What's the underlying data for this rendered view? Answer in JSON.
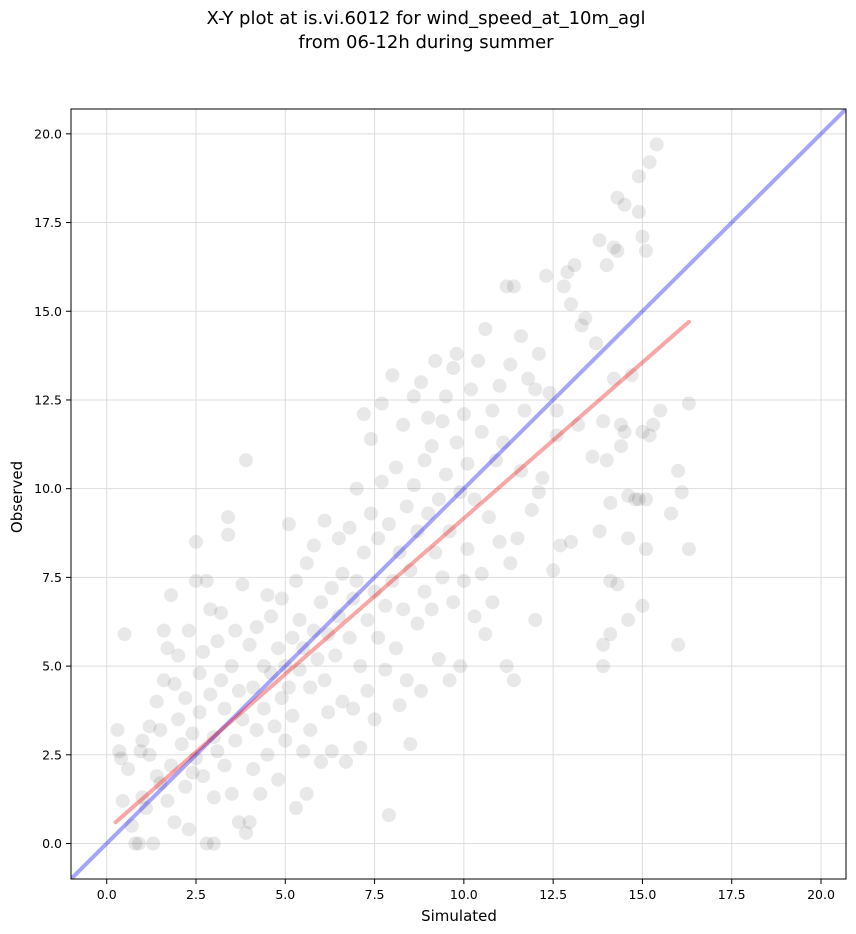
{
  "chart_data": {
    "type": "scatter",
    "title": "X-Y plot at is.vi.6012 for wind_speed_at_10m_agl",
    "subtitle": "from 06-12h during summer",
    "xlabel": "Simulated",
    "ylabel": "Observed",
    "xlim": [
      -1.0,
      20.7
    ],
    "ylim": [
      -1.0,
      20.7
    ],
    "xticks": [
      0.0,
      2.5,
      5.0,
      7.5,
      10.0,
      12.5,
      15.0,
      17.5,
      20.0
    ],
    "yticks": [
      0.0,
      2.5,
      5.0,
      7.5,
      10.0,
      12.5,
      15.0,
      17.5,
      20.0
    ],
    "xtick_labels": [
      "0.0",
      "2.5",
      "5.0",
      "7.5",
      "10.0",
      "12.5",
      "15.0",
      "17.5",
      "20.0"
    ],
    "ytick_labels": [
      "0.0",
      "2.5",
      "5.0",
      "7.5",
      "10.0",
      "12.5",
      "15.0",
      "17.5",
      "20.0"
    ],
    "grid": true,
    "marker_color": "#000000",
    "identity_line_color": "#0000ee",
    "fit_line_color": "#ee0000",
    "identity_line": {
      "x": [
        -1.0,
        20.7
      ],
      "y": [
        -1.0,
        20.7
      ]
    },
    "fit_line": {
      "x": [
        0.25,
        16.3
      ],
      "y": [
        0.6,
        14.7
      ]
    },
    "series": [
      {
        "values": [
          [
            0.3,
            3.2
          ],
          [
            0.35,
            2.6
          ],
          [
            0.4,
            2.4
          ],
          [
            0.45,
            1.2
          ],
          [
            0.5,
            5.9
          ],
          [
            0.6,
            2.1
          ],
          [
            0.7,
            0.5
          ],
          [
            0.8,
            0.0
          ],
          [
            0.9,
            0.0
          ],
          [
            0.95,
            2.6
          ],
          [
            1.0,
            1.3
          ],
          [
            1.0,
            2.9
          ],
          [
            1.1,
            1.0
          ],
          [
            1.2,
            3.3
          ],
          [
            1.2,
            2.5
          ],
          [
            1.3,
            0.0
          ],
          [
            1.4,
            4.0
          ],
          [
            1.4,
            1.9
          ],
          [
            1.5,
            1.7
          ],
          [
            1.5,
            3.2
          ],
          [
            1.6,
            6.0
          ],
          [
            1.6,
            4.6
          ],
          [
            1.7,
            5.5
          ],
          [
            1.7,
            1.2
          ],
          [
            1.8,
            7.0
          ],
          [
            1.8,
            2.2
          ],
          [
            1.9,
            4.5
          ],
          [
            1.9,
            0.6
          ],
          [
            2.0,
            3.5
          ],
          [
            2.0,
            5.3
          ],
          [
            2.1,
            2.8
          ],
          [
            2.2,
            1.6
          ],
          [
            2.2,
            4.1
          ],
          [
            2.3,
            6.0
          ],
          [
            2.3,
            0.4
          ],
          [
            2.4,
            3.1
          ],
          [
            2.4,
            2.0
          ],
          [
            2.5,
            8.5
          ],
          [
            2.5,
            2.4
          ],
          [
            2.5,
            7.4
          ],
          [
            2.6,
            4.8
          ],
          [
            2.6,
            3.7
          ],
          [
            2.7,
            5.4
          ],
          [
            2.7,
            1.9
          ],
          [
            2.8,
            0.0
          ],
          [
            2.8,
            7.4
          ],
          [
            2.9,
            4.2
          ],
          [
            2.9,
            6.6
          ],
          [
            3.0,
            3.0
          ],
          [
            3.0,
            1.3
          ],
          [
            3.0,
            0.0
          ],
          [
            3.1,
            5.7
          ],
          [
            3.1,
            2.6
          ],
          [
            3.2,
            4.6
          ],
          [
            3.2,
            6.5
          ],
          [
            3.3,
            2.2
          ],
          [
            3.3,
            3.8
          ],
          [
            3.4,
            9.2
          ],
          [
            3.4,
            8.7
          ],
          [
            3.5,
            5.0
          ],
          [
            3.5,
            1.4
          ],
          [
            3.6,
            6.0
          ],
          [
            3.6,
            2.9
          ],
          [
            3.7,
            0.6
          ],
          [
            3.7,
            4.3
          ],
          [
            3.8,
            7.3
          ],
          [
            3.8,
            3.5
          ],
          [
            3.9,
            0.3
          ],
          [
            3.9,
            10.8
          ],
          [
            4.0,
            5.6
          ],
          [
            4.0,
            0.6
          ],
          [
            4.1,
            2.1
          ],
          [
            4.1,
            4.4
          ],
          [
            4.2,
            6.1
          ],
          [
            4.2,
            3.2
          ],
          [
            4.3,
            1.4
          ],
          [
            4.4,
            5.0
          ],
          [
            4.4,
            3.8
          ],
          [
            4.5,
            7.0
          ],
          [
            4.5,
            2.5
          ],
          [
            4.6,
            6.4
          ],
          [
            4.6,
            4.8
          ],
          [
            4.7,
            3.3
          ],
          [
            4.8,
            5.5
          ],
          [
            4.8,
            1.8
          ],
          [
            4.9,
            4.1
          ],
          [
            4.9,
            6.9
          ],
          [
            5.0,
            5.0
          ],
          [
            5.0,
            2.9
          ],
          [
            5.1,
            9.0
          ],
          [
            5.1,
            4.4
          ],
          [
            5.2,
            5.8
          ],
          [
            5.2,
            3.6
          ],
          [
            5.3,
            7.4
          ],
          [
            5.3,
            1.0
          ],
          [
            5.4,
            4.9
          ],
          [
            5.4,
            6.3
          ],
          [
            5.5,
            2.6
          ],
          [
            5.5,
            5.5
          ],
          [
            5.6,
            1.4
          ],
          [
            5.6,
            7.9
          ],
          [
            5.7,
            4.4
          ],
          [
            5.7,
            3.2
          ],
          [
            5.8,
            6.0
          ],
          [
            5.8,
            8.4
          ],
          [
            5.9,
            5.2
          ],
          [
            6.0,
            2.3
          ],
          [
            6.0,
            6.8
          ],
          [
            6.1,
            4.6
          ],
          [
            6.1,
            9.1
          ],
          [
            6.2,
            5.9
          ],
          [
            6.2,
            3.7
          ],
          [
            6.3,
            7.2
          ],
          [
            6.3,
            2.6
          ],
          [
            6.4,
            5.3
          ],
          [
            6.5,
            8.6
          ],
          [
            6.5,
            6.4
          ],
          [
            6.6,
            4.0
          ],
          [
            6.6,
            7.6
          ],
          [
            6.7,
            2.3
          ],
          [
            6.8,
            5.8
          ],
          [
            6.8,
            8.9
          ],
          [
            6.9,
            6.9
          ],
          [
            6.9,
            3.8
          ],
          [
            7.0,
            7.4
          ],
          [
            7.0,
            10.0
          ],
          [
            7.1,
            5.0
          ],
          [
            7.1,
            2.7
          ],
          [
            7.2,
            12.1
          ],
          [
            7.2,
            8.2
          ],
          [
            7.3,
            6.3
          ],
          [
            7.3,
            4.3
          ],
          [
            7.4,
            9.3
          ],
          [
            7.4,
            11.4
          ],
          [
            7.5,
            7.1
          ],
          [
            7.5,
            3.5
          ],
          [
            7.6,
            8.6
          ],
          [
            7.6,
            5.8
          ],
          [
            7.7,
            10.2
          ],
          [
            7.7,
            12.4
          ],
          [
            7.8,
            6.7
          ],
          [
            7.8,
            4.9
          ],
          [
            7.9,
            9.0
          ],
          [
            7.9,
            0.8
          ],
          [
            8.0,
            7.4
          ],
          [
            8.0,
            13.2
          ],
          [
            8.1,
            5.5
          ],
          [
            8.1,
            10.6
          ],
          [
            8.2,
            8.2
          ],
          [
            8.2,
            3.9
          ],
          [
            8.3,
            11.8
          ],
          [
            8.3,
            6.6
          ],
          [
            8.4,
            9.5
          ],
          [
            8.4,
            4.6
          ],
          [
            8.5,
            7.7
          ],
          [
            8.5,
            2.8
          ],
          [
            8.6,
            12.6
          ],
          [
            8.6,
            10.1
          ],
          [
            8.7,
            8.8
          ],
          [
            8.7,
            6.2
          ],
          [
            8.8,
            13.0
          ],
          [
            8.8,
            4.3
          ],
          [
            8.9,
            10.8
          ],
          [
            8.9,
            7.1
          ],
          [
            9.0,
            9.3
          ],
          [
            9.0,
            12.0
          ],
          [
            9.1,
            6.6
          ],
          [
            9.1,
            11.2
          ],
          [
            9.2,
            8.2
          ],
          [
            9.2,
            13.6
          ],
          [
            9.3,
            9.7
          ],
          [
            9.3,
            5.2
          ],
          [
            9.4,
            11.9
          ],
          [
            9.4,
            7.5
          ],
          [
            9.5,
            10.4
          ],
          [
            9.5,
            12.6
          ],
          [
            9.6,
            8.8
          ],
          [
            9.6,
            4.6
          ],
          [
            9.7,
            13.4
          ],
          [
            9.7,
            6.8
          ],
          [
            9.8,
            11.3
          ],
          [
            9.8,
            13.8
          ],
          [
            9.9,
            9.9
          ],
          [
            9.9,
            5.0
          ],
          [
            10.0,
            12.1
          ],
          [
            10.0,
            7.4
          ],
          [
            10.1,
            10.7
          ],
          [
            10.1,
            8.3
          ],
          [
            10.2,
            12.8
          ],
          [
            10.3,
            6.4
          ],
          [
            10.3,
            9.7
          ],
          [
            10.4,
            13.6
          ],
          [
            10.5,
            11.6
          ],
          [
            10.5,
            7.6
          ],
          [
            10.6,
            14.5
          ],
          [
            10.6,
            5.9
          ],
          [
            10.7,
            9.2
          ],
          [
            10.8,
            12.2
          ],
          [
            10.8,
            6.8
          ],
          [
            10.9,
            10.8
          ],
          [
            11.0,
            12.9
          ],
          [
            11.0,
            8.5
          ],
          [
            11.1,
            11.3
          ],
          [
            11.2,
            15.7
          ],
          [
            11.2,
            5.0
          ],
          [
            11.3,
            13.5
          ],
          [
            11.3,
            7.9
          ],
          [
            11.4,
            15.7
          ],
          [
            11.4,
            4.6
          ],
          [
            11.5,
            8.6
          ],
          [
            11.6,
            14.3
          ],
          [
            11.6,
            10.5
          ],
          [
            11.7,
            12.2
          ],
          [
            11.8,
            13.1
          ],
          [
            11.9,
            9.4
          ],
          [
            12.0,
            12.8
          ],
          [
            12.0,
            6.3
          ],
          [
            12.1,
            13.8
          ],
          [
            12.1,
            9.9
          ],
          [
            12.2,
            10.3
          ],
          [
            12.3,
            16.0
          ],
          [
            12.4,
            12.7
          ],
          [
            12.5,
            7.7
          ],
          [
            12.6,
            11.5
          ],
          [
            12.6,
            12.2
          ],
          [
            12.7,
            8.4
          ],
          [
            12.8,
            15.7
          ],
          [
            12.9,
            16.1
          ],
          [
            13.0,
            15.2
          ],
          [
            13.0,
            8.5
          ],
          [
            13.1,
            16.3
          ],
          [
            13.2,
            11.8
          ],
          [
            13.3,
            14.6
          ],
          [
            13.4,
            14.8
          ],
          [
            13.6,
            10.9
          ],
          [
            13.7,
            14.1
          ],
          [
            13.8,
            8.8
          ],
          [
            13.8,
            17.0
          ],
          [
            13.9,
            11.9
          ],
          [
            13.9,
            5.6
          ],
          [
            13.9,
            5.0
          ],
          [
            14.0,
            10.8
          ],
          [
            14.0,
            16.3
          ],
          [
            14.1,
            7.4
          ],
          [
            14.1,
            5.9
          ],
          [
            14.1,
            9.6
          ],
          [
            14.2,
            16.8
          ],
          [
            14.2,
            13.1
          ],
          [
            14.3,
            18.2
          ],
          [
            14.3,
            16.7
          ],
          [
            14.3,
            7.3
          ],
          [
            14.4,
            11.8
          ],
          [
            14.4,
            11.2
          ],
          [
            14.5,
            11.6
          ],
          [
            14.5,
            18.0
          ],
          [
            14.6,
            8.6
          ],
          [
            14.6,
            9.8
          ],
          [
            14.6,
            6.3
          ],
          [
            14.7,
            13.2
          ],
          [
            14.8,
            9.7
          ],
          [
            14.9,
            17.8
          ],
          [
            14.9,
            18.8
          ],
          [
            14.9,
            9.7
          ],
          [
            15.0,
            6.7
          ],
          [
            15.0,
            11.6
          ],
          [
            15.0,
            17.1
          ],
          [
            15.1,
            8.3
          ],
          [
            15.1,
            16.7
          ],
          [
            15.2,
            11.5
          ],
          [
            15.2,
            19.2
          ],
          [
            15.3,
            11.8
          ],
          [
            15.4,
            19.7
          ],
          [
            15.5,
            12.2
          ],
          [
            15.8,
            9.3
          ],
          [
            16.0,
            10.5
          ],
          [
            16.0,
            5.6
          ],
          [
            16.1,
            9.9
          ],
          [
            16.3,
            8.3
          ],
          [
            16.3,
            12.4
          ],
          [
            15.1,
            9.7
          ]
        ]
      }
    ]
  }
}
